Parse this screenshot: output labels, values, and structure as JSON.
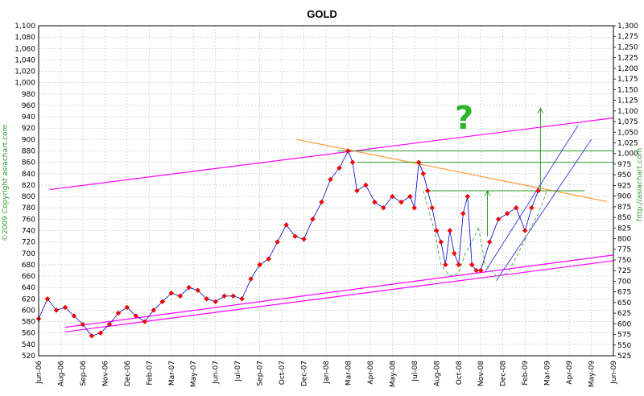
{
  "chart_data": {
    "type": "line",
    "title": "GOLD",
    "x_tick_labels": [
      "Jun-06",
      "Aug-06",
      "Sep-06",
      "Nov-06",
      "Dec-06",
      "Feb-07",
      "Mar-07",
      "May-07",
      "Jun-07",
      "Jul-07",
      "Sep-07",
      "Oct-07",
      "Dec-07",
      "Jan-08",
      "Mar-08",
      "Apr-08",
      "May-08",
      "Jul-08",
      "Aug-08",
      "Oct-08",
      "Nov-08",
      "Dec-08",
      "Feb-09",
      "Mar-09",
      "Apr-09",
      "May-09",
      "Jun-09"
    ],
    "left_axis": {
      "min": 520,
      "max": 1100,
      "step": 20,
      "ticks": [
        "520",
        "540",
        "560",
        "580",
        "600",
        "620",
        "640",
        "660",
        "680",
        "700",
        "720",
        "740",
        "760",
        "780",
        "800",
        "820",
        "840",
        "860",
        "880",
        "900",
        "920",
        "940",
        "960",
        "980",
        "1,000",
        "1,020",
        "1,040",
        "1,060",
        "1,080",
        "1,100"
      ]
    },
    "right_axis": {
      "min": 525,
      "max": 1300,
      "step": 25,
      "ticks": [
        "525",
        "550",
        "575",
        "600",
        "625",
        "650",
        "675",
        "700",
        "725",
        "750",
        "775",
        "800",
        "825",
        "850",
        "875",
        "900",
        "925",
        "950",
        "975",
        "1,000",
        "1,025",
        "1,050",
        "1,075",
        "1,100",
        "1,125",
        "1,150",
        "1,175",
        "1,200",
        "1,225",
        "1,250",
        "1,275",
        "1,300"
      ]
    },
    "grid": true,
    "series": [
      {
        "color": "#ff0000",
        "line_color": "#0000cc",
        "x_index": [
          0,
          0.4,
          0.8,
          1.2,
          1.6,
          2.0,
          2.4,
          2.8,
          3.2,
          3.6,
          4.0,
          4.4,
          4.8,
          5.2,
          5.6,
          6.0,
          6.4,
          6.8,
          7.2,
          7.6,
          8.0,
          8.4,
          8.8,
          9.2,
          9.6,
          10.0,
          10.4,
          10.8,
          11.2,
          11.6,
          12.0,
          12.4,
          12.8,
          13.2,
          13.6,
          14.0,
          14.2,
          14.4,
          14.8,
          15.2,
          15.6,
          16.0,
          16.4,
          16.8,
          17.0,
          17.2,
          17.4,
          17.6,
          17.8,
          18.0,
          18.2,
          18.4,
          18.6,
          18.8,
          19.0,
          19.2,
          19.4,
          19.6,
          19.8,
          20.0,
          20.4,
          20.8,
          21.2,
          21.6,
          22.0,
          22.3,
          22.6
        ],
        "values": [
          585,
          620,
          600,
          605,
          590,
          575,
          555,
          560,
          575,
          595,
          605,
          590,
          580,
          600,
          615,
          630,
          625,
          640,
          635,
          620,
          615,
          625,
          625,
          620,
          655,
          680,
          690,
          720,
          750,
          730,
          725,
          760,
          790,
          830,
          850,
          880,
          860,
          810,
          820,
          790,
          780,
          800,
          790,
          800,
          780,
          860,
          840,
          810,
          780,
          740,
          720,
          680,
          740,
          700,
          680,
          770,
          800,
          680,
          670,
          670,
          720,
          760,
          770,
          780,
          740,
          780,
          810
        ]
      }
    ],
    "annotations": {
      "question_mark": "?",
      "copyright": "©2009 Copyright asiachart.com",
      "url": "http://asiachart.com"
    },
    "colors": {
      "price_markers": "#ff0000",
      "price_line": "#0000cc",
      "magenta_channel": "#ff00ff",
      "orange_trend": "#ff9933",
      "green_levels": "#2a9a2a",
      "blue_channel": "#4444ee",
      "grid": "#c0c0c0"
    }
  }
}
